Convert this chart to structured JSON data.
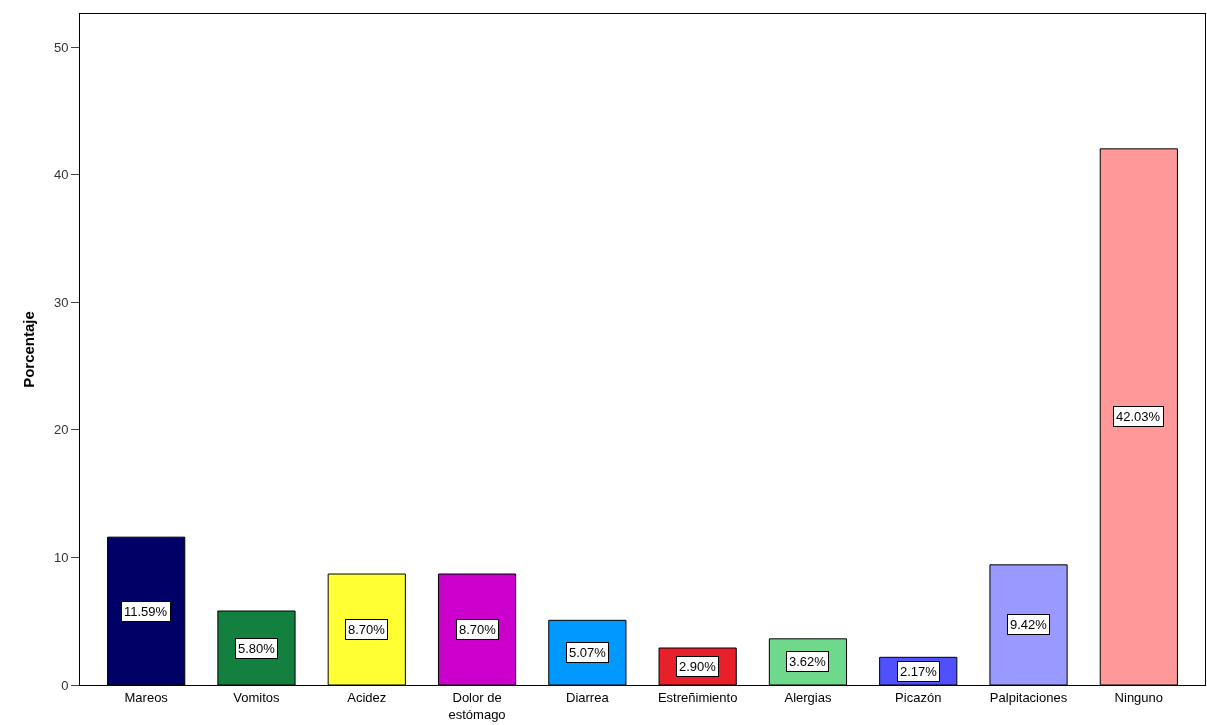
{
  "chart_data": {
    "type": "bar",
    "ylabel": "Porcentaje",
    "categories": [
      "Mareos",
      "Vomitos",
      "Acidez",
      "Dolor de estómago",
      "Diarrea",
      "Estreñimiento",
      "Alergias",
      "Picazón",
      "Palpitaciones",
      "Ninguno"
    ],
    "values": [
      11.59,
      5.8,
      8.7,
      8.7,
      5.07,
      2.9,
      3.62,
      2.17,
      9.42,
      42.03
    ],
    "value_labels": [
      "11.59%",
      "5.80%",
      "8.70%",
      "8.70%",
      "5.07%",
      "2.90%",
      "3.62%",
      "2.17%",
      "9.42%",
      "42.03%"
    ],
    "colors": [
      "#000066",
      "#148040",
      "#ffff33",
      "#cc00cc",
      "#0099ff",
      "#e8202a",
      "#6ed98a",
      "#5050ff",
      "#9999ff",
      "#ff9999"
    ],
    "ylim": [
      0,
      52.6
    ],
    "yticks": [
      0,
      10,
      20,
      30,
      40,
      50
    ],
    "legend": false
  }
}
